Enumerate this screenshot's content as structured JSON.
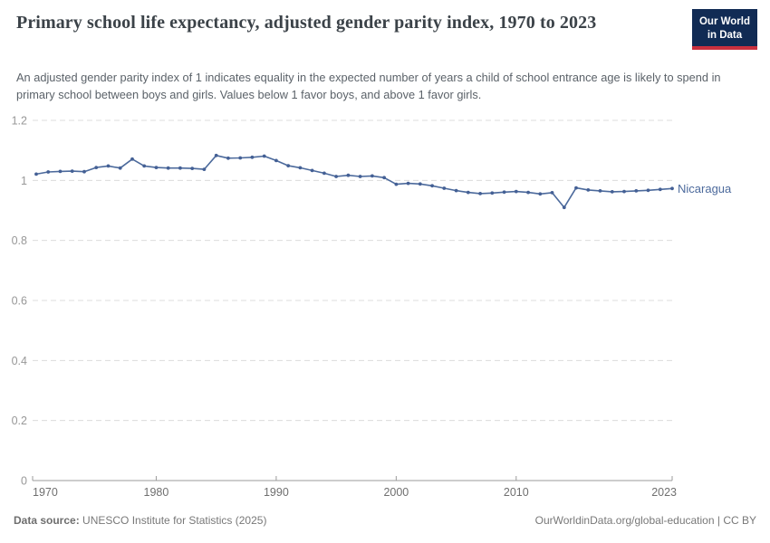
{
  "header": {
    "title": "Primary school life expectancy, adjusted gender parity index, 1970 to 2023",
    "subtitle": "An adjusted gender parity index of 1 indicates equality in the expected number of years a child of school entrance age is likely to spend in primary school between boys and girls. Values below 1 favor boys, and above 1 favor girls."
  },
  "logo": {
    "line1": "Our World",
    "line2": "in Data",
    "bg_color": "#112B54",
    "bar_color": "#C9303E"
  },
  "footer": {
    "datasource_label": "Data source:",
    "datasource_text": " UNESCO Institute for Statistics (2025)",
    "right_text": "OurWorldinData.org/global-education | CC BY"
  },
  "chart_data": {
    "type": "line",
    "title": "Primary school life expectancy, adjusted gender parity index, 1970 to 2023",
    "xlabel": "",
    "ylabel": "",
    "ylim": [
      0,
      1.2
    ],
    "grid": true,
    "legend_position": "end-of-line",
    "ytick_values": [
      0,
      0.2,
      0.4,
      0.6,
      0.8,
      1,
      1.2
    ],
    "ytick_labels": [
      "0",
      "0.2",
      "0.4",
      "0.6",
      "0.8",
      "1",
      "1.2"
    ],
    "xtick_years": [
      1970,
      1980,
      1990,
      2000,
      2010,
      2023
    ],
    "xtick_labels": [
      "1970",
      "1980",
      "1990",
      "2000",
      "2010",
      "2023"
    ],
    "x": [
      1970,
      1971,
      1972,
      1973,
      1974,
      1975,
      1976,
      1977,
      1978,
      1979,
      1980,
      1981,
      1982,
      1983,
      1984,
      1985,
      1986,
      1987,
      1988,
      1989,
      1990,
      1991,
      1992,
      1993,
      1994,
      1995,
      1996,
      1997,
      1998,
      1999,
      2000,
      2001,
      2002,
      2003,
      2004,
      2005,
      2006,
      2007,
      2008,
      2009,
      2010,
      2011,
      2012,
      2013,
      2014,
      2015,
      2016,
      2017,
      2018,
      2019,
      2020,
      2021,
      2022,
      2023
    ],
    "series": [
      {
        "name": "Nicaragua",
        "color": "#4C6A9C",
        "marker_color": "#446095",
        "values": [
          1.021,
          1.028,
          1.03,
          1.031,
          1.029,
          1.043,
          1.048,
          1.041,
          1.071,
          1.048,
          1.043,
          1.041,
          1.041,
          1.04,
          1.037,
          1.083,
          1.074,
          1.075,
          1.077,
          1.081,
          1.066,
          1.049,
          1.042,
          1.033,
          1.024,
          1.013,
          1.017,
          1.013,
          1.015,
          1.009,
          0.987,
          0.99,
          0.988,
          0.982,
          0.974,
          0.966,
          0.96,
          0.956,
          0.958,
          0.961,
          0.963,
          0.96,
          0.955,
          0.959,
          0.91,
          0.975,
          0.968,
          0.965,
          0.962,
          0.963,
          0.965,
          0.967,
          0.97,
          0.973
        ]
      }
    ]
  }
}
